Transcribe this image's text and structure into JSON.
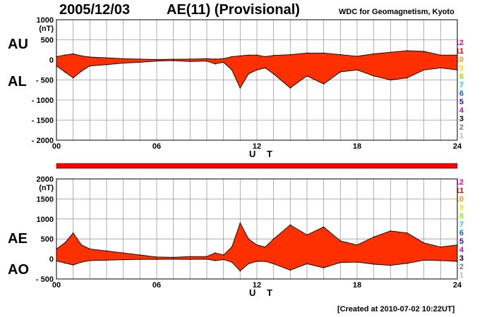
{
  "header": {
    "date": "2005/12/03",
    "title": "AE(11) (Provisional)",
    "source": "WDC for Geomagnetism, Kyoto"
  },
  "footer": {
    "created": "[Created at 2010-07-02 10:22UT]"
  },
  "colors": {
    "fill": "#ff3000",
    "grid": "#9a9a9a",
    "axis": "#000000"
  },
  "legend": [
    {
      "label": "12",
      "color": "#ff0090"
    },
    {
      "label": "11",
      "color": "#ff0000"
    },
    {
      "label": "10",
      "color": "#ff9900"
    },
    {
      "label": "9",
      "color": "#f0f000"
    },
    {
      "label": "8",
      "color": "#99ee00"
    },
    {
      "label": "7",
      "color": "#00dddd"
    },
    {
      "label": "6",
      "color": "#0066ff"
    },
    {
      "label": "5",
      "color": "#3300cc"
    },
    {
      "label": "4",
      "color": "#cc00cc"
    },
    {
      "label": "3",
      "color": "#000000"
    },
    {
      "label": "2",
      "color": "#777777"
    },
    {
      "label": "1",
      "color": "#bbbbbb"
    }
  ],
  "chart_data": [
    {
      "type": "area",
      "name": "AU-AL",
      "upper_label": "AU",
      "lower_label": "AL",
      "unit": "(nT)",
      "xlabel": "U T",
      "xlim": [
        0,
        24
      ],
      "ylim": [
        -2000,
        1000
      ],
      "x_ticks": [
        "00",
        "06",
        "12",
        "18",
        "24"
      ],
      "y_ticks": [
        "1000",
        "500",
        "0",
        "- 500",
        "- 1000",
        "- 1500",
        "- 2000"
      ],
      "upper_series": {
        "name": "AU",
        "x": [
          0,
          0.5,
          1,
          1.5,
          2,
          3,
          4,
          5,
          6,
          7,
          8,
          9,
          9.5,
          10,
          10.5,
          11,
          11.5,
          12,
          12.5,
          13,
          14,
          15,
          16,
          17,
          18,
          19,
          20,
          21,
          22,
          23,
          24
        ],
        "values": [
          80,
          120,
          150,
          100,
          70,
          50,
          30,
          20,
          10,
          15,
          20,
          30,
          20,
          30,
          80,
          100,
          120,
          120,
          80,
          110,
          130,
          170,
          170,
          130,
          90,
          150,
          190,
          230,
          210,
          120,
          120
        ]
      },
      "lower_series": {
        "name": "AL",
        "x": [
          0,
          0.5,
          1,
          1.5,
          2,
          3,
          4,
          5,
          6,
          7,
          8,
          9,
          9.5,
          10,
          10.5,
          11,
          11.5,
          12,
          12.5,
          13,
          14,
          15,
          16,
          17,
          18,
          19,
          20,
          21,
          22,
          23,
          24
        ],
        "values": [
          -150,
          -300,
          -450,
          -280,
          -150,
          -120,
          -80,
          -60,
          -30,
          -20,
          -40,
          -30,
          -100,
          -60,
          -250,
          -700,
          -350,
          -250,
          -200,
          -350,
          -700,
          -400,
          -600,
          -300,
          -250,
          -400,
          -500,
          -450,
          -250,
          -200,
          -250
        ]
      }
    },
    {
      "type": "area",
      "name": "AE-AO",
      "upper_label": "AE",
      "lower_label": "AO",
      "unit": "(nT)",
      "xlabel": "U T",
      "xlim": [
        0,
        24
      ],
      "ylim": [
        -500,
        2000
      ],
      "x_ticks": [
        "00",
        "06",
        "12",
        "18",
        "24"
      ],
      "y_ticks": [
        "2000",
        "1500",
        "1000",
        "500",
        "0",
        "- 500"
      ],
      "upper_series": {
        "name": "AE",
        "x": [
          0,
          0.5,
          1,
          1.5,
          2,
          3,
          4,
          5,
          6,
          7,
          8,
          9,
          9.5,
          10,
          10.5,
          11,
          11.5,
          12,
          12.5,
          13,
          14,
          15,
          16,
          17,
          18,
          19,
          20,
          21,
          22,
          23,
          24
        ],
        "values": [
          250,
          400,
          650,
          350,
          250,
          200,
          150,
          100,
          50,
          40,
          60,
          60,
          150,
          100,
          300,
          900,
          500,
          350,
          300,
          500,
          850,
          600,
          800,
          450,
          350,
          550,
          700,
          650,
          400,
          300,
          350
        ]
      },
      "lower_series": {
        "name": "AO",
        "x": [
          0,
          0.5,
          1,
          1.5,
          2,
          3,
          4,
          5,
          6,
          7,
          8,
          9,
          9.5,
          10,
          10.5,
          11,
          11.5,
          12,
          12.5,
          13,
          14,
          15,
          16,
          17,
          18,
          19,
          20,
          21,
          22,
          23,
          24
        ],
        "values": [
          -50,
          -100,
          -150,
          -80,
          -40,
          -30,
          -20,
          -10,
          -10,
          -5,
          -10,
          -5,
          -40,
          -15,
          -80,
          -300,
          -120,
          -60,
          -60,
          -120,
          -280,
          -120,
          -220,
          -90,
          -80,
          -130,
          -160,
          -110,
          -30,
          -40,
          -60
        ]
      }
    }
  ]
}
